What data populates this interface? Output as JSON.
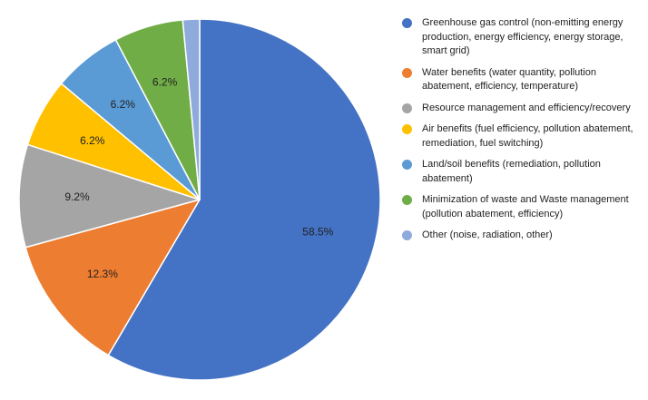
{
  "chart_data": {
    "type": "pie",
    "title": "",
    "legend_position": "right",
    "slices": [
      {
        "label": "Greenhouse gas control (non-emitting energy production, energy efficiency, energy storage, smart grid)",
        "value": 58.5,
        "display": "58.5%",
        "color": "#4472C4"
      },
      {
        "label": "Water benefits (water quantity, pollution abatement, efficiency, temperature)",
        "value": 12.3,
        "display": "12.3%",
        "color": "#ED7D31"
      },
      {
        "label": "Resource management and efficiency/recovery",
        "value": 9.2,
        "display": "9.2%",
        "color": "#A5A5A5"
      },
      {
        "label": "Air benefits (fuel efficiency, pollution abatement, remediation, fuel switching)",
        "value": 6.2,
        "display": "6.2%",
        "color": "#FFC000"
      },
      {
        "label": "Land/soil benefits (remediation, pollution abatement)",
        "value": 6.2,
        "display": "6.2%",
        "color": "#5B9BD5"
      },
      {
        "label": "Minimization of waste and Waste management (pollution abatement, efficiency)",
        "value": 6.2,
        "display": "6.2%",
        "color": "#70AD47"
      },
      {
        "label": "Other (noise, radiation, other)",
        "value": 1.5,
        "display": "",
        "color": "#8FAADC"
      }
    ]
  }
}
